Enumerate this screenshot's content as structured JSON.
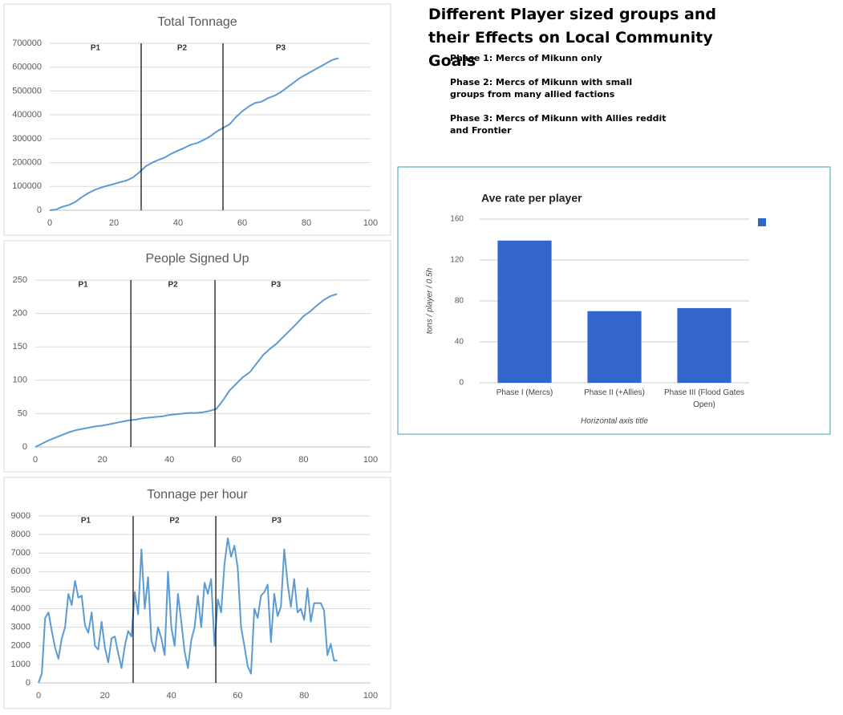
{
  "notes": {
    "heading": "Different Player sized groups and their Effects on Local Community Goals",
    "phases": [
      "Phase 1: Mercs of Mikunn only",
      "Phase 2: Mercs of Mikunn with small groups from many allied factions",
      "Phase 3: Mercs of Mikunn with Allies reddit and Frontier"
    ]
  },
  "chart_data": [
    {
      "type": "line",
      "title": "Total Tonnage",
      "color": "#5b9bd5",
      "grid": true,
      "x": [
        0,
        2,
        4,
        6,
        8,
        10,
        12,
        14,
        16,
        18,
        20,
        22,
        24,
        26,
        28,
        30,
        32,
        34,
        36,
        38,
        40,
        42,
        44,
        46,
        48,
        50,
        52,
        54,
        56,
        58,
        60,
        62,
        64,
        66,
        68,
        70,
        72,
        74,
        76,
        78,
        80,
        82,
        84,
        86,
        88,
        90
      ],
      "values": [
        0,
        3000,
        15000,
        22000,
        35000,
        55000,
        72000,
        85000,
        95000,
        103000,
        110000,
        118000,
        125000,
        138000,
        160000,
        185000,
        200000,
        212000,
        222000,
        238000,
        250000,
        262000,
        275000,
        282000,
        295000,
        310000,
        330000,
        345000,
        360000,
        390000,
        415000,
        435000,
        450000,
        455000,
        470000,
        480000,
        495000,
        515000,
        535000,
        555000,
        570000,
        585000,
        600000,
        615000,
        630000,
        638000
      ],
      "xlim": [
        0,
        100
      ],
      "xticks": [
        0,
        20,
        40,
        60,
        80,
        100
      ],
      "ylim": [
        0,
        700000
      ],
      "yticks": [
        0,
        100000,
        200000,
        300000,
        400000,
        500000,
        600000,
        700000
      ],
      "phase_lines": [
        28.5,
        54
      ],
      "annotations": [
        "P1",
        "P2",
        "P3"
      ]
    },
    {
      "type": "line",
      "title": "People Signed Up",
      "color": "#5b9bd5",
      "grid": true,
      "x": [
        0,
        2,
        4,
        6,
        8,
        10,
        12,
        14,
        16,
        18,
        20,
        22,
        24,
        26,
        28,
        30,
        32,
        34,
        36,
        38,
        40,
        42,
        44,
        46,
        48,
        50,
        52,
        54,
        56,
        58,
        60,
        62,
        64,
        66,
        68,
        70,
        72,
        74,
        76,
        78,
        80,
        82,
        84,
        86,
        88,
        90
      ],
      "values": [
        0,
        5,
        10,
        14,
        18,
        22,
        25,
        27,
        29,
        31,
        32,
        34,
        36,
        38,
        40,
        41,
        43,
        44,
        45,
        46,
        48,
        49,
        50,
        51,
        51,
        52,
        54,
        57,
        70,
        85,
        95,
        105,
        112,
        125,
        138,
        147,
        155,
        165,
        175,
        185,
        196,
        203,
        212,
        220,
        226,
        229
      ],
      "xlim": [
        0,
        100
      ],
      "xticks": [
        0,
        20,
        40,
        60,
        80,
        100
      ],
      "ylim": [
        0,
        250
      ],
      "yticks": [
        0,
        50,
        100,
        150,
        200,
        250
      ],
      "phase_lines": [
        28.5,
        53.6
      ],
      "annotations": [
        "P1",
        "P2",
        "P3"
      ]
    },
    {
      "type": "line",
      "title": "Tonnage per hour",
      "color": "#5b9bd5",
      "grid": true,
      "x": [
        0,
        1,
        2,
        3,
        4,
        5,
        6,
        7,
        8,
        9,
        10,
        11,
        12,
        13,
        14,
        15,
        16,
        17,
        18,
        19,
        20,
        21,
        22,
        23,
        24,
        25,
        26,
        27,
        28,
        29,
        30,
        31,
        32,
        33,
        34,
        35,
        36,
        37,
        38,
        39,
        40,
        41,
        42,
        43,
        44,
        45,
        46,
        47,
        48,
        49,
        50,
        51,
        52,
        53,
        54,
        55,
        56,
        57,
        58,
        59,
        60,
        61,
        62,
        63,
        64,
        65,
        66,
        67,
        68,
        69,
        70,
        71,
        72,
        73,
        74,
        75,
        76,
        77,
        78,
        79,
        80,
        81,
        82,
        83,
        84,
        85,
        86,
        87,
        88,
        89,
        90
      ],
      "values": [
        0,
        500,
        3500,
        3800,
        2800,
        1900,
        1300,
        2400,
        3000,
        4800,
        4200,
        5500,
        4600,
        4700,
        3100,
        2700,
        3800,
        2000,
        1800,
        3300,
        1900,
        1100,
        2400,
        2500,
        1600,
        800,
        2000,
        2800,
        2500,
        4900,
        3700,
        7200,
        4000,
        5700,
        2300,
        1700,
        3000,
        2400,
        1500,
        6000,
        3000,
        2000,
        4800,
        3300,
        1700,
        800,
        2300,
        3000,
        4700,
        3000,
        5400,
        4800,
        5600,
        2000,
        4500,
        3800,
        6400,
        7800,
        6800,
        7400,
        6200,
        3000,
        2000,
        900,
        500,
        4000,
        3500,
        4700,
        4900,
        5300,
        2200,
        4800,
        3600,
        4100,
        7200,
        5400,
        4100,
        5600,
        3800,
        4000,
        3400,
        5100,
        3300,
        4300,
        4300,
        4300,
        3900,
        1500,
        2100,
        1200,
        1200
      ],
      "xlim": [
        0,
        100
      ],
      "xticks": [
        0,
        20,
        40,
        60,
        80,
        100
      ],
      "ylim": [
        0,
        9000
      ],
      "yticks": [
        0,
        1000,
        2000,
        3000,
        4000,
        5000,
        6000,
        7000,
        8000,
        9000
      ],
      "phase_lines": [
        28.5,
        53.4
      ],
      "annotations": [
        "P1",
        "P2",
        "P3"
      ]
    },
    {
      "type": "bar",
      "title": "Ave rate per player",
      "color": "#3366cc",
      "grid": true,
      "categories": [
        "Phase I (Mercs)",
        "Phase II (+Allies)",
        "Phase III (Flood Gates Open)"
      ],
      "values": [
        139,
        70,
        73
      ],
      "ylim": [
        0,
        160
      ],
      "yticks": [
        0,
        40,
        80,
        120,
        160
      ],
      "y_title": "tons / player / 0.5h",
      "x_title": "Horizontal axis title"
    }
  ]
}
